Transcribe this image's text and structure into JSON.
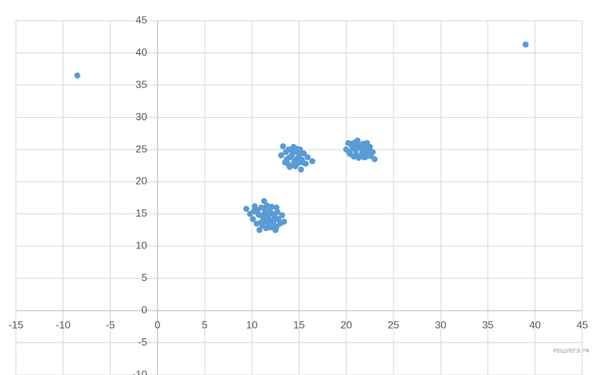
{
  "chart_data": {
    "type": "scatter",
    "watermark": "РЕШУЕГЭ.РФ",
    "xlim": [
      -15,
      45
    ],
    "ylim": [
      -10,
      45
    ],
    "xticks": [
      -15,
      -10,
      -5,
      0,
      5,
      10,
      15,
      20,
      25,
      30,
      35,
      40,
      45
    ],
    "yticks": [
      -10,
      -5,
      0,
      5,
      10,
      15,
      20,
      25,
      30,
      35,
      40,
      45
    ],
    "grid": true,
    "series": [
      {
        "color": "#5b9bd5",
        "x": [
          -8.5,
          39.0,
          9.4,
          9.8,
          10.1,
          10.3,
          10.5,
          10.6,
          10.8,
          10.9,
          11.0,
          11.1,
          11.2,
          11.3,
          11.4,
          11.5,
          11.5,
          11.6,
          11.7,
          11.8,
          11.9,
          12.0,
          12.0,
          12.1,
          12.2,
          12.3,
          12.4,
          12.5,
          12.6,
          12.7,
          12.8,
          13.0,
          13.2,
          13.4,
          10.7,
          11.3,
          11.9,
          12.4,
          10.2,
          11.0,
          12.6,
          11.6,
          13.1,
          13.3,
          13.5,
          13.6,
          13.8,
          13.9,
          14.0,
          14.1,
          14.3,
          14.4,
          14.5,
          14.6,
          14.7,
          14.8,
          14.9,
          15.0,
          15.1,
          15.2,
          15.3,
          15.5,
          15.7,
          15.9,
          16.4,
          13.7,
          14.2,
          14.8,
          15.4,
          14.0,
          15.0,
          14.5,
          20.0,
          20.2,
          20.4,
          20.6,
          20.8,
          20.9,
          21.0,
          21.2,
          21.3,
          21.5,
          21.6,
          21.8,
          21.9,
          22.0,
          22.2,
          22.3,
          22.5,
          22.6,
          22.8,
          23.0,
          20.3,
          20.7,
          21.1,
          21.4,
          21.7,
          22.1,
          22.4,
          21.0,
          21.9,
          20.5
        ],
        "values": [
          36.5,
          41.3,
          15.8,
          15.0,
          14.2,
          16.2,
          13.5,
          15.6,
          12.5,
          14.8,
          16.0,
          13.2,
          14.4,
          17.0,
          15.2,
          13.8,
          12.8,
          16.3,
          14.6,
          13.4,
          15.5,
          14.0,
          12.9,
          16.1,
          15.0,
          13.6,
          14.7,
          12.5,
          16.0,
          15.3,
          14.2,
          13.5,
          14.8,
          13.8,
          14.9,
          15.9,
          13.1,
          14.3,
          15.4,
          13.7,
          13.0,
          14.6,
          24.1,
          25.5,
          23.0,
          24.6,
          22.8,
          25.0,
          23.8,
          22.5,
          24.3,
          25.4,
          23.2,
          22.4,
          24.7,
          23.6,
          22.9,
          24.2,
          25.0,
          21.9,
          23.4,
          24.4,
          22.8,
          23.8,
          23.2,
          23.5,
          24.0,
          25.1,
          23.0,
          22.3,
          23.7,
          24.8,
          25.0,
          26.0,
          24.3,
          25.6,
          23.9,
          26.1,
          24.8,
          26.4,
          23.7,
          25.3,
          24.1,
          25.9,
          23.8,
          24.9,
          26.0,
          24.3,
          25.4,
          24.0,
          24.6,
          23.5,
          24.6,
          25.2,
          24.1,
          25.7,
          24.6,
          23.9,
          24.9,
          25.3,
          25.6,
          25.9
        ]
      }
    ]
  }
}
